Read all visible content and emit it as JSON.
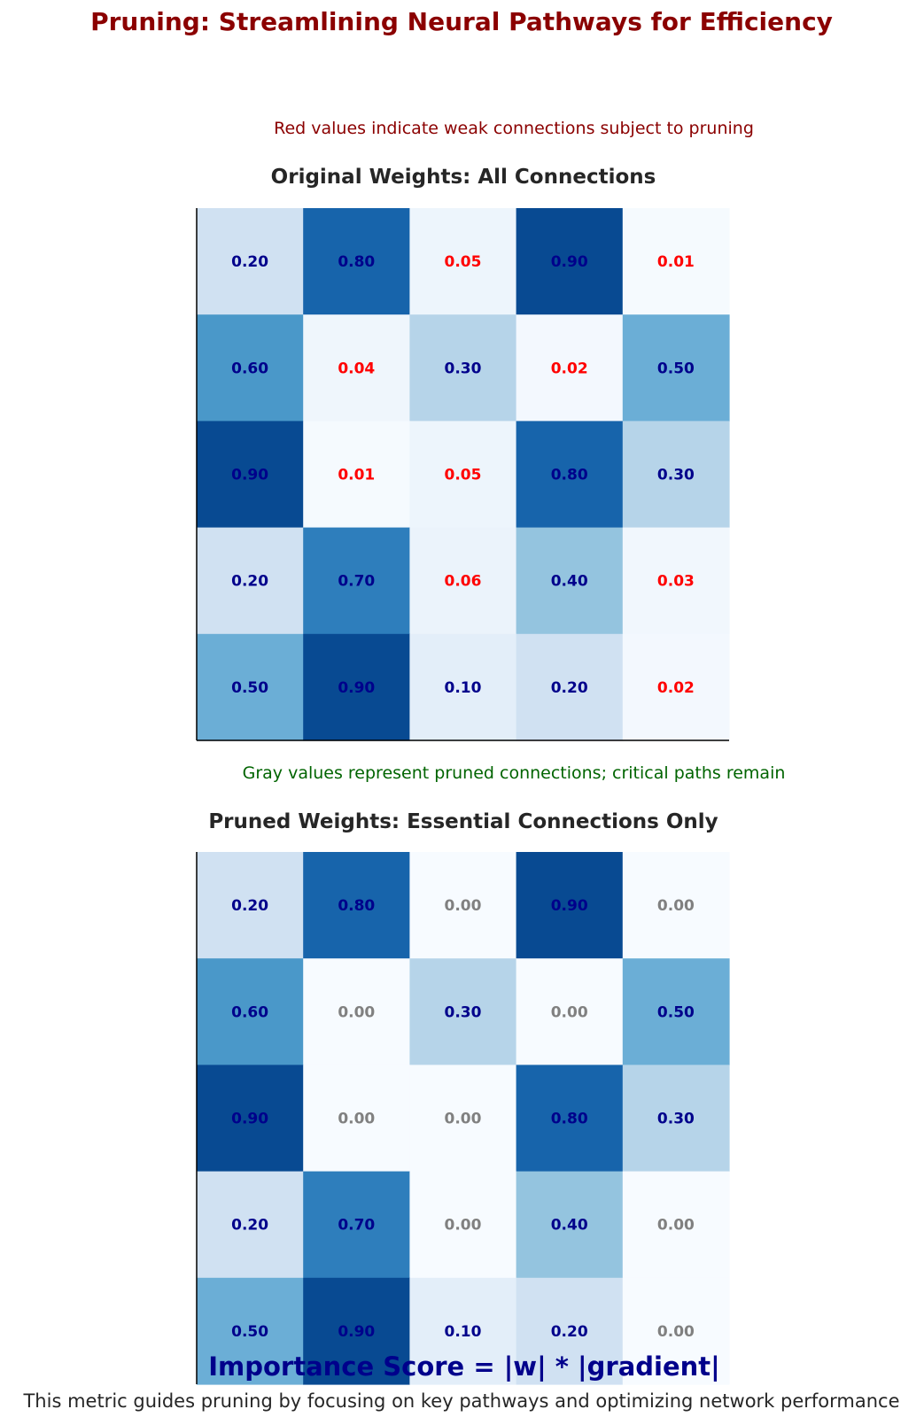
{
  "figure": {
    "title": "Pruning: Streamlining Neural Pathways for Efficiency",
    "formula": "Importance Score = |w| * |gradient|",
    "footnote": "This metric guides pruning by focusing on key pathways and optimizing network performance"
  },
  "chart_data": [
    {
      "type": "heatmap",
      "title": "Original Weights: All Connections",
      "annotation": "Red values indicate weak connections subject to pruning",
      "colormap": "Blues",
      "value_range": [
        0,
        1
      ],
      "rows": 5,
      "cols": 5,
      "values": [
        [
          0.2,
          0.8,
          0.05,
          0.9,
          0.01
        ],
        [
          0.6,
          0.04,
          0.3,
          0.02,
          0.5
        ],
        [
          0.9,
          0.01,
          0.05,
          0.8,
          0.3
        ],
        [
          0.2,
          0.7,
          0.06,
          0.4,
          0.03
        ],
        [
          0.5,
          0.9,
          0.1,
          0.2,
          0.02
        ]
      ],
      "label_colors": {
        "strong": "#00008b",
        "weak": "#ff0000"
      },
      "weak_threshold": 0.1
    },
    {
      "type": "heatmap",
      "title": "Pruned Weights: Essential Connections Only",
      "annotation": "Gray values represent pruned connections; critical paths remain",
      "colormap": "Blues",
      "value_range": [
        0,
        1
      ],
      "rows": 5,
      "cols": 5,
      "values": [
        [
          0.2,
          0.8,
          0.0,
          0.9,
          0.0
        ],
        [
          0.6,
          0.0,
          0.3,
          0.0,
          0.5
        ],
        [
          0.9,
          0.0,
          0.0,
          0.8,
          0.3
        ],
        [
          0.2,
          0.7,
          0.0,
          0.4,
          0.0
        ],
        [
          0.5,
          0.9,
          0.1,
          0.2,
          0.0
        ]
      ],
      "label_colors": {
        "strong": "#00008b",
        "pruned": "#808080"
      }
    }
  ],
  "colors": {
    "title": "#8b0000",
    "annotation_original": "#8b0000",
    "annotation_pruned": "#006400",
    "subplot_title": "#262626",
    "formula": "#00008b",
    "footnote": "#262626"
  }
}
